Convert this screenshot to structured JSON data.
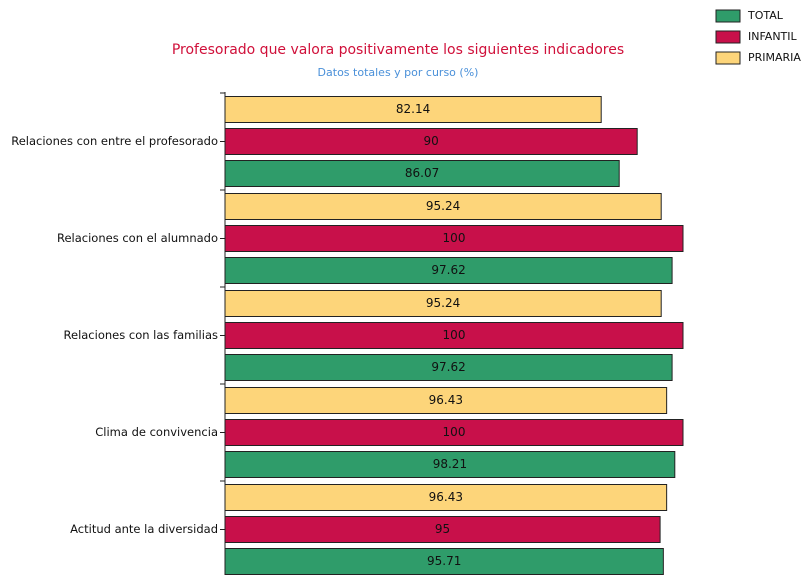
{
  "chart_data": {
    "type": "hbar",
    "title": "Profesorado que valora positivamente los siguientes indicadores",
    "subtitle": "Datos totales y por curso (%)",
    "categories": [
      "Relaciones con entre el profesorado",
      "Relaciones con el alumnado",
      "Relaciones con las familias",
      "Clima de convivencia",
      "Actitud ante la diversidad"
    ],
    "series": [
      {
        "name": "TOTAL",
        "color": "#2f9c6a",
        "values": [
          86.07,
          97.62,
          97.62,
          98.21,
          95.71
        ]
      },
      {
        "name": "INFANTIL",
        "color": "#c8104a",
        "values": [
          90,
          100,
          100,
          100,
          95
        ]
      },
      {
        "name": "PRIMARIA",
        "color": "#fdd57a",
        "values": [
          82.14,
          95.24,
          95.24,
          96.43,
          96.43
        ]
      }
    ],
    "xlim": [
      0,
      100
    ],
    "legend": "top-right"
  }
}
